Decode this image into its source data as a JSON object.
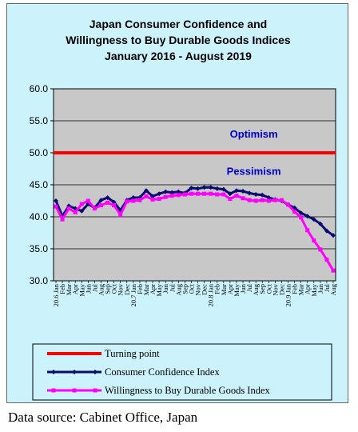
{
  "source_note": "Data source: Cabinet Office, Japan",
  "colors": {
    "panel_bg": "#ccf2fb",
    "plot_bg": "#c8c8c8",
    "consumer_confidence": "#0a0a70",
    "willingness": "#ff00ff",
    "turning_point": "#ff0000",
    "annotation_text": "#0000cc",
    "legend_bg": "#ccf2fb"
  },
  "chart_data": {
    "type": "line",
    "title": [
      "Japan Consumer Confidence and",
      "Willingness to Buy Durable Goods Indices",
      "January 2016 - August 2019"
    ],
    "ylim": [
      30.0,
      60.0
    ],
    "y_ticks": [
      "30.0",
      "35.0",
      "40.0",
      "45.0",
      "50.0",
      "55.0",
      "60.0"
    ],
    "grid": "horizontal",
    "legend_position": "bottom",
    "x_labels": [
      "20.6 Jan",
      "Feb",
      "Mar",
      "Apr",
      "May",
      "Jun",
      "Jul",
      "Aug",
      "Sep",
      "Oct",
      "Nov",
      "Dec",
      "20.7 Jan",
      "Feb",
      "Mar",
      "Apr",
      "May",
      "Jun",
      "Jul",
      "Aug",
      "Sep",
      "Oct",
      "Nov",
      "Dec",
      "20.8 Jan",
      "Feb",
      "Mar",
      "Apr",
      "May",
      "Jun",
      "Jul",
      "Aug",
      "Sep",
      "Oct",
      "Nov",
      "Dec",
      "20.9 Jan",
      "Feb",
      "Mar",
      "Apr",
      "May",
      "Jun",
      "Jul",
      "Aug"
    ],
    "annotations": [
      {
        "text": "Optimism",
        "y": 53.0
      },
      {
        "text": "Pessimism",
        "y": 47.2
      }
    ],
    "series": [
      {
        "name": "Consumer Confidence Index",
        "values": [
          42.5,
          40.1,
          41.7,
          41.3,
          40.9,
          42.0,
          41.4,
          42.6,
          43.0,
          42.3,
          41.0,
          42.6,
          43.0,
          43.0,
          44.1,
          43.2,
          43.6,
          43.9,
          43.8,
          43.9,
          43.7,
          44.5,
          44.4,
          44.6,
          44.6,
          44.4,
          44.3,
          43.6,
          44.1,
          44.0,
          43.7,
          43.5,
          43.4,
          43.0,
          42.7,
          42.5,
          41.9,
          41.4,
          40.6,
          40.1,
          39.6,
          38.9,
          37.8,
          37.1
        ]
      },
      {
        "name": "Willingness to Buy Durable Goods Index",
        "values": [
          41.6,
          39.6,
          41.3,
          40.7,
          42.0,
          42.5,
          41.3,
          41.8,
          42.2,
          41.8,
          40.3,
          42.4,
          42.5,
          42.6,
          43.2,
          42.7,
          42.8,
          43.1,
          43.3,
          43.4,
          43.5,
          43.6,
          43.6,
          43.6,
          43.6,
          43.5,
          43.5,
          42.8,
          43.3,
          42.9,
          42.6,
          42.5,
          42.6,
          42.5,
          42.6,
          42.6,
          41.9,
          40.8,
          39.9,
          37.9,
          36.3,
          34.9,
          33.3,
          31.6
        ]
      },
      {
        "name": "Turning point",
        "values": [
          50.0,
          50.0
        ]
      }
    ]
  }
}
